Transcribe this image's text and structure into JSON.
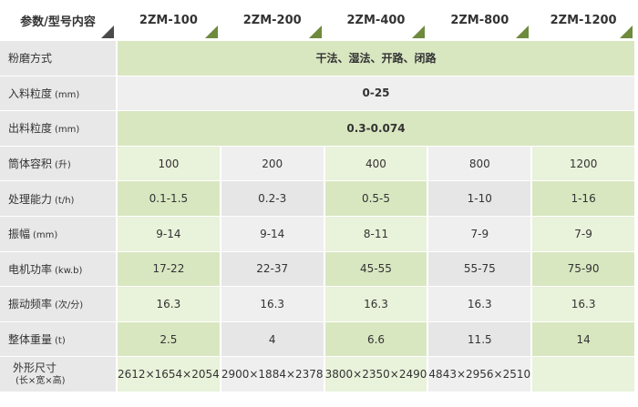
{
  "table": {
    "header": [
      "参数/型号内容",
      "2ZM-100",
      "2ZM-200",
      "2ZM-400",
      "2ZM-800",
      "2ZM-1200"
    ],
    "rows": [
      {
        "label": "粉磨方式",
        "cells": [
          "干法、湿法、开路、闭路"
        ]
      },
      {
        "label": "入料粒度",
        "unit": "(mm)",
        "cells": [
          "0-25"
        ]
      },
      {
        "label": "出料粒度",
        "unit": "(mm)",
        "cells": [
          "0.3-0.074"
        ]
      },
      {
        "label": "筒体容积",
        "unit": "(升)",
        "cells": [
          "100",
          "200",
          "400",
          "800",
          "1200"
        ]
      },
      {
        "label": "处理能力",
        "unit": "(t/h)",
        "cells": [
          "0.1-1.5",
          "0.2-3",
          "0.5-5",
          "1-10",
          "1-16"
        ]
      },
      {
        "label": "振幅",
        "unit": "(mm)",
        "cells": [
          "9-14",
          "9-14",
          "8-11",
          "7-9",
          "7-9"
        ]
      },
      {
        "label": "电机功率",
        "unit": "(kw.b)",
        "cells": [
          "17-22",
          "22-37",
          "45-55",
          "55-75",
          "75-90"
        ]
      },
      {
        "label": "振动频率",
        "unit": "(次/分)",
        "cells": [
          "16.3",
          "16.3",
          "16.3",
          "16.3",
          "16.3"
        ]
      },
      {
        "label": "整体重量",
        "unit": "(t)",
        "cells": [
          "2.5",
          "4",
          "6.6",
          "11.5",
          "14"
        ]
      },
      {
        "label": "外形尺寸",
        "unit": "(长×宽×高)",
        "cells": [
          "2612×1654×2054",
          "2900×1884×2378",
          "3800×2350×2490",
          "4843×2956×2510"
        ]
      }
    ]
  }
}
